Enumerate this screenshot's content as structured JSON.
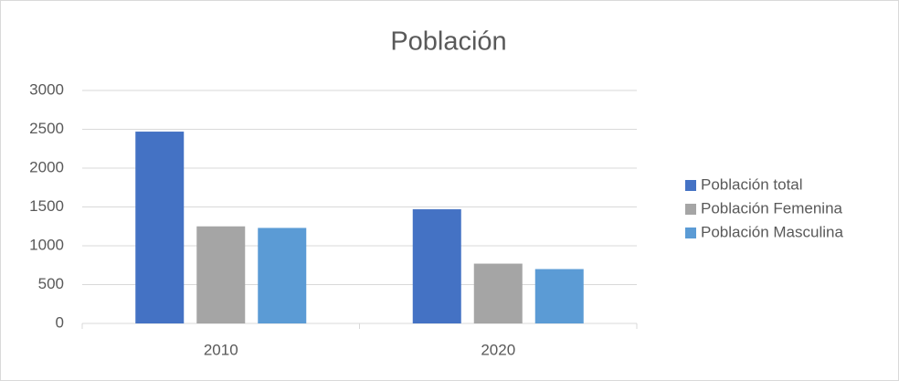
{
  "chart_data": {
    "type": "bar",
    "title": "Población",
    "categories": [
      "2010",
      "2020"
    ],
    "series": [
      {
        "name": "Población total",
        "color": "#4472c4",
        "values": [
          2470,
          1470
        ]
      },
      {
        "name": "Población Femenina",
        "color": "#a5a5a5",
        "values": [
          1250,
          770
        ]
      },
      {
        "name": "Población Masculina",
        "color": "#5b9bd5",
        "values": [
          1230,
          700
        ]
      }
    ],
    "ylim": [
      0,
      3000
    ],
    "yticks": [
      0,
      500,
      1000,
      1500,
      2000,
      2500,
      3000
    ],
    "grid": true,
    "legend": "right"
  }
}
